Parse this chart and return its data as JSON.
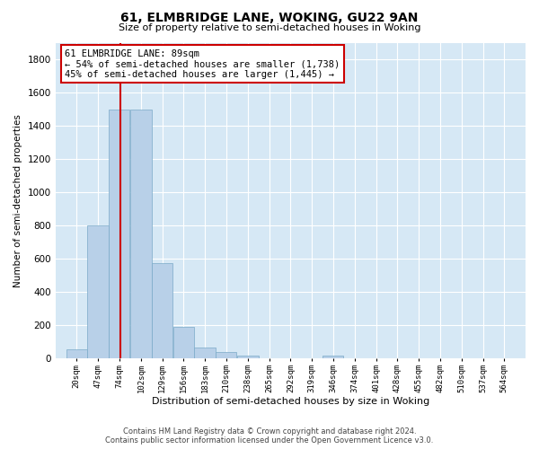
{
  "title": "61, ELMBRIDGE LANE, WOKING, GU22 9AN",
  "subtitle": "Size of property relative to semi-detached houses in Woking",
  "xlabel": "Distribution of semi-detached houses by size in Woking",
  "ylabel": "Number of semi-detached properties",
  "footer_line1": "Contains HM Land Registry data © Crown copyright and database right 2024.",
  "footer_line2": "Contains public sector information licensed under the Open Government Licence v3.0.",
  "bar_labels": [
    "20sqm",
    "47sqm",
    "74sqm",
    "102sqm",
    "129sqm",
    "156sqm",
    "183sqm",
    "210sqm",
    "238sqm",
    "265sqm",
    "292sqm",
    "319sqm",
    "346sqm",
    "374sqm",
    "401sqm",
    "428sqm",
    "455sqm",
    "482sqm",
    "510sqm",
    "537sqm",
    "564sqm"
  ],
  "bar_heights": [
    55,
    800,
    1500,
    1500,
    575,
    190,
    65,
    40,
    15,
    2,
    2,
    2,
    15,
    2,
    2,
    2,
    2,
    2,
    2,
    2,
    2
  ],
  "bar_color": "#b8d0e8",
  "bar_edge_color": "#7aaac8",
  "ylim": [
    0,
    1900
  ],
  "yticks": [
    0,
    200,
    400,
    600,
    800,
    1000,
    1200,
    1400,
    1600,
    1800
  ],
  "property_size": 89,
  "property_label": "61 ELMBRIDGE LANE: 89sqm",
  "annotation_line1": "← 54% of semi-detached houses are smaller (1,738)",
  "annotation_line2": "45% of semi-detached houses are larger (1,445) →",
  "vline_color": "#cc0000",
  "annotation_box_color": "#cc0000",
  "fig_background": "#ffffff",
  "plot_background": "#d6e8f5",
  "grid_color": "#ffffff",
  "bin_starts": [
    20,
    47,
    74,
    102,
    129,
    156,
    183,
    210,
    238,
    265,
    292,
    319,
    346,
    374,
    401,
    428,
    455,
    482,
    510,
    537,
    564
  ],
  "bin_width": 27
}
